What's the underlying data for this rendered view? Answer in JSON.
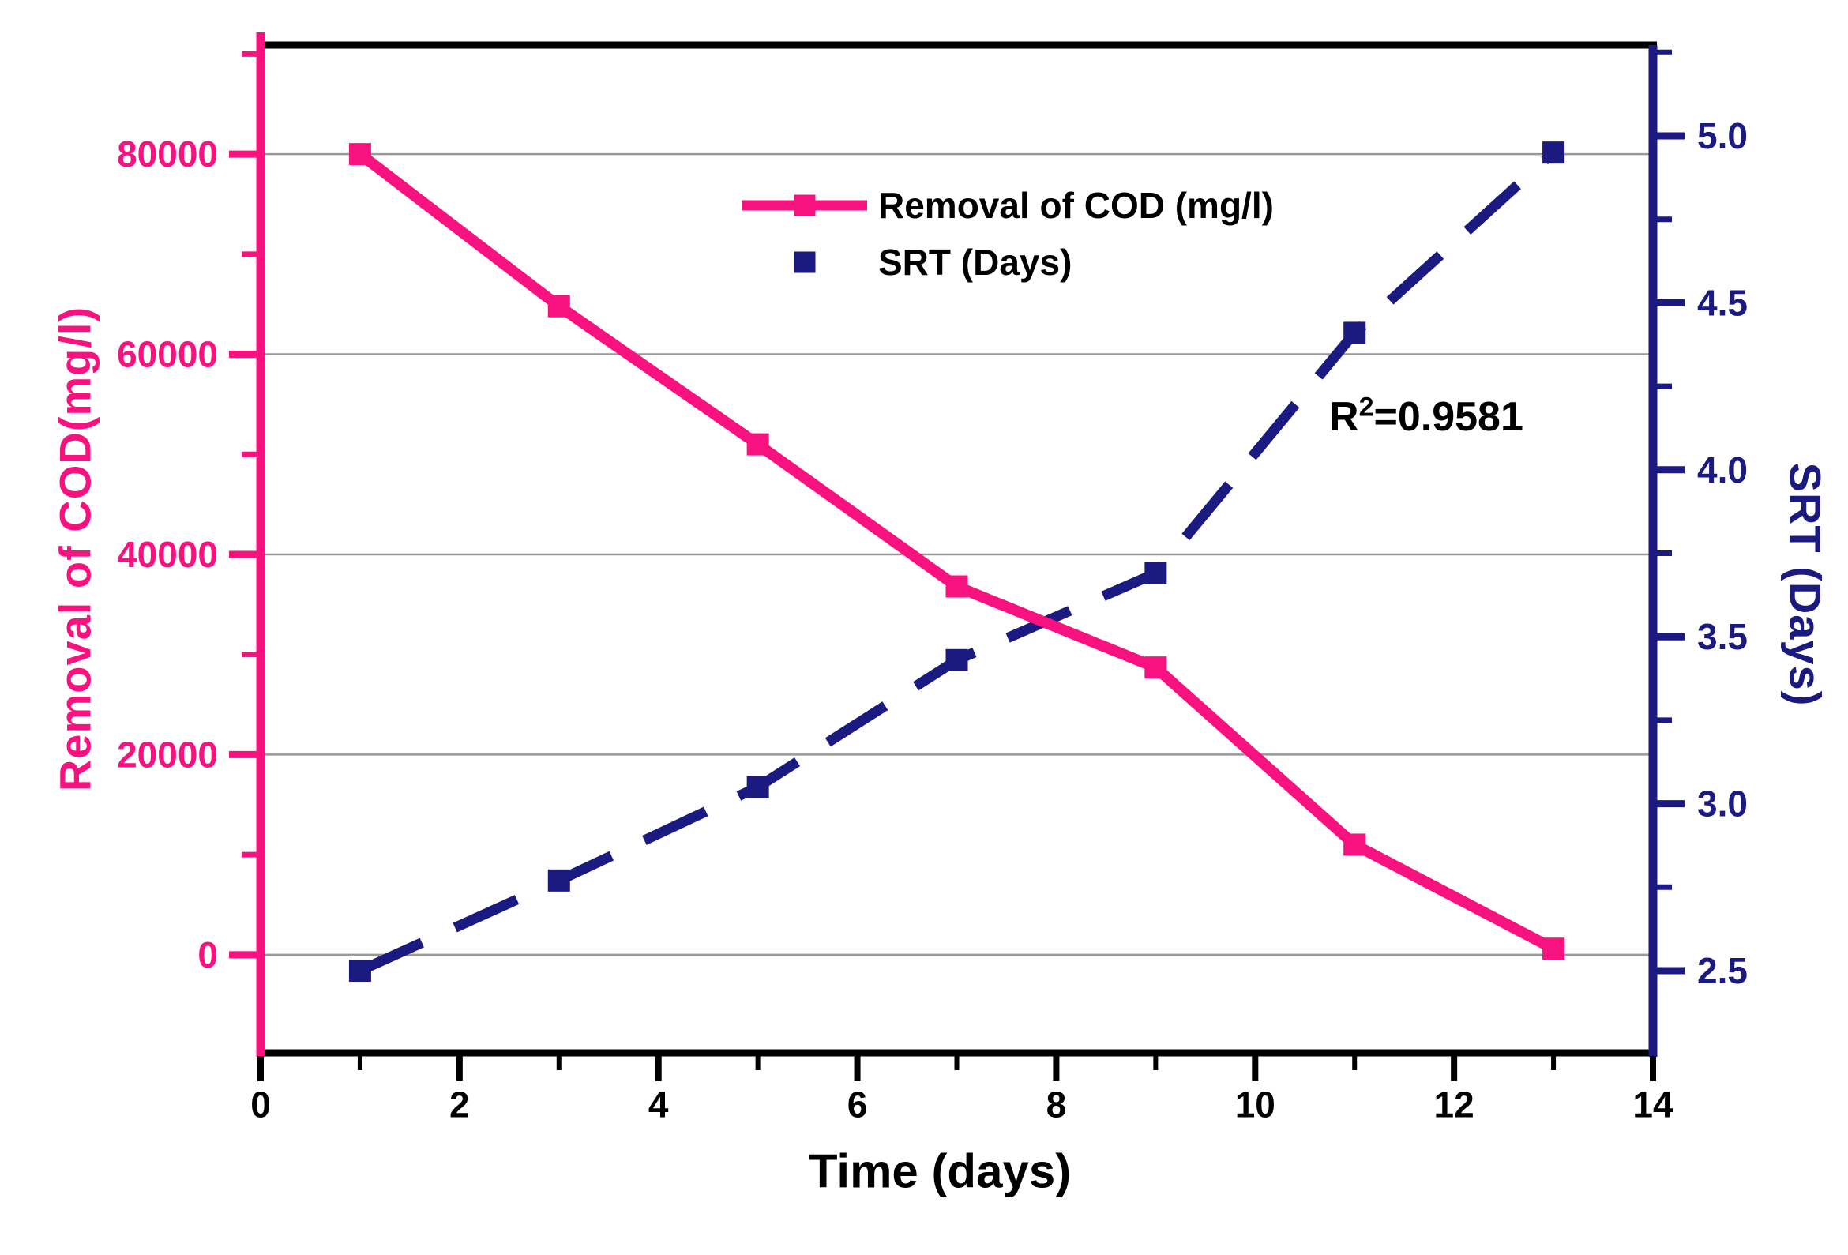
{
  "chart_data": {
    "type": "line",
    "title": "",
    "x": [
      1,
      3,
      5,
      7,
      9,
      11,
      13
    ],
    "series": [
      {
        "name": "Removal of COD (mg/l)",
        "axis": "left",
        "color": "#F81280",
        "line_style": "solid",
        "marker": "square",
        "values": [
          80000,
          64800,
          51000,
          36800,
          28700,
          11000,
          600
        ]
      },
      {
        "name": "SRT (Days)",
        "axis": "right",
        "color": "#1A1A80",
        "line_style": "dashed",
        "marker": "square",
        "values": [
          2.5,
          2.77,
          3.05,
          3.43,
          3.69,
          4.41,
          4.95
        ]
      }
    ],
    "xlabel": "Time (days)",
    "ylabel_left": "Removal of COD(mg/l)",
    "ylabel_right": "SRT (Days)",
    "xlim": [
      0,
      14
    ],
    "ylim_left": [
      -9800,
      90900
    ],
    "ylim_right": [
      2.254,
      5.272
    ],
    "xticks_major": [
      0,
      2,
      4,
      6,
      8,
      10,
      12,
      14
    ],
    "xticks_major_labels": [
      "0",
      "2",
      "4",
      "6",
      "8",
      "10",
      "12",
      "14"
    ],
    "xticks_minor": [
      1,
      3,
      5,
      7,
      9,
      11,
      13
    ],
    "yticks_left": [
      0,
      20000,
      40000,
      60000,
      80000
    ],
    "yticks_left_labels": [
      "0",
      "20000",
      "40000",
      "60000",
      "80000"
    ],
    "yticks_left_minor": [
      10000,
      30000,
      50000,
      70000,
      90000
    ],
    "yticks_right": [
      2.5,
      3.0,
      3.5,
      4.0,
      4.5,
      5.0
    ],
    "yticks_right_labels": [
      "2.5",
      "3.0",
      "3.5",
      "4.0",
      "4.5",
      "5.0"
    ],
    "yticks_right_minor": [
      2.75,
      3.25,
      3.75,
      4.25,
      4.75,
      5.25
    ],
    "grid": true,
    "grid_color": "#999999",
    "legend_position": "top-center",
    "annotation": {
      "base": "R",
      "sup": "2",
      "rest": "=0.9581"
    },
    "colors": {
      "cod_pink": "#F81280",
      "srt_navy": "#1A1A80",
      "axis_black": "#000000"
    }
  }
}
